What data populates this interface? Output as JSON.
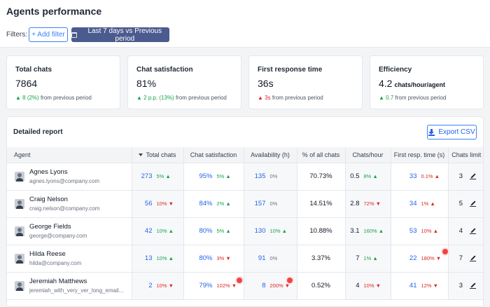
{
  "header": {
    "title": "Agents performance",
    "filters_label": "Filters:",
    "add_filter": "+ Add filter",
    "date_filter": "Last 7 days vs Previous period"
  },
  "cards": [
    {
      "title": "Total chats",
      "value": "7864",
      "unit": "",
      "delta_value": "▲ 8 (2%)",
      "delta_dir": "up",
      "delta_text": "from previous period"
    },
    {
      "title": "Chat satisfaction",
      "value": "81%",
      "unit": "",
      "delta_value": "▲ 2 p.p. (13%)",
      "delta_dir": "up",
      "delta_text": "from previous period"
    },
    {
      "title": "First response time",
      "value": "36s",
      "unit": "",
      "delta_value": "▲ 3s",
      "delta_dir": "down",
      "delta_text": "from previous period"
    },
    {
      "title": "Efficiency",
      "value": "4.2",
      "unit": "chats/hour/agent",
      "delta_value": "▲ 0.7",
      "delta_dir": "up",
      "delta_text": "from previous period"
    }
  ],
  "report": {
    "title": "Detailed report",
    "export_label": "Export CSV",
    "columns": [
      "Agent",
      "Total chats",
      "Chat satisfaction",
      "Availability (h)",
      "% of all chats",
      "Chats/hour",
      "First resp. time (s)",
      "Chats limit"
    ],
    "rows": [
      {
        "name": "Agnes Lyons",
        "email": "agnes.lyons@company.com",
        "total": "273",
        "total_d": "5% ▲",
        "total_dir": "up",
        "sat": "95%",
        "sat_d": "5% ▲",
        "sat_dir": "up",
        "avail": "135",
        "avail_d": "0%",
        "avail_dir": "neutral",
        "pct": "70.73%",
        "cph": "0.5",
        "cph_d": "8% ▲",
        "cph_dir": "up",
        "frt": "33",
        "frt_d": "0.1% ▲",
        "frt_dir": "down",
        "limit": "3"
      },
      {
        "name": "Craig Nelson",
        "email": "craig.nelson@company.com",
        "total": "56",
        "total_d": "10% ▼",
        "total_dir": "down",
        "sat": "84%",
        "sat_d": "2% ▲",
        "sat_dir": "up",
        "avail": "157",
        "avail_d": "0%",
        "avail_dir": "neutral",
        "pct": "14.51%",
        "cph": "2.8",
        "cph_d": "72% ▼",
        "cph_dir": "down",
        "frt": "34",
        "frt_d": "1% ▲",
        "frt_dir": "down",
        "limit": "5"
      },
      {
        "name": "George Fields",
        "email": "george@company.com",
        "total": "42",
        "total_d": "10% ▲",
        "total_dir": "up",
        "sat": "80%",
        "sat_d": "5% ▲",
        "sat_dir": "up",
        "avail": "130",
        "avail_d": "10% ▲",
        "avail_dir": "up",
        "pct": "10.88%",
        "cph": "3.1",
        "cph_d": "160% ▲",
        "cph_dir": "up",
        "frt": "53",
        "frt_d": "10% ▲",
        "frt_dir": "down",
        "limit": "4"
      },
      {
        "name": "Hilda Reese",
        "email": "hilda@company.com",
        "total": "13",
        "total_d": "10% ▲",
        "total_dir": "up",
        "sat": "80%",
        "sat_d": "3% ▼",
        "sat_dir": "down",
        "avail": "91",
        "avail_d": "0%",
        "avail_dir": "neutral",
        "pct": "3.37%",
        "cph": "7",
        "cph_d": "1% ▲",
        "cph_dir": "up",
        "frt": "22",
        "frt_d": "180% ▼",
        "frt_dir": "down",
        "limit": "7"
      },
      {
        "name": "Jeremiah Matthews",
        "email": "jeremiah_with_very_ver_long_email...",
        "total": "2",
        "total_d": "10% ▼",
        "total_dir": "down",
        "sat": "79%",
        "sat_d": "102% ▼",
        "sat_dir": "down",
        "avail": "8",
        "avail_d": "200% ▼",
        "avail_dir": "down",
        "pct": "0.52%",
        "cph": "4",
        "cph_d": "10% ▼",
        "cph_dir": "down",
        "frt": "41",
        "frt_d": "12% ▼",
        "frt_dir": "down",
        "limit": "3"
      }
    ]
  },
  "colors": {
    "accent": "#3b82f6",
    "date_filter_bg": "#4b5b8f",
    "up": "#16a34a",
    "down": "#dc2626",
    "alert_dot": "#ef4444"
  }
}
